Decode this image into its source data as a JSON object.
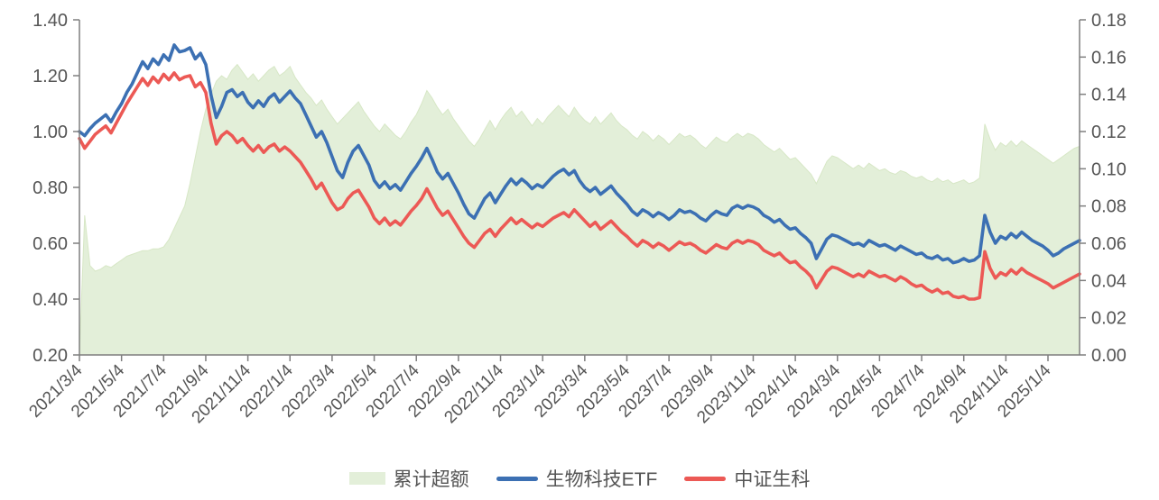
{
  "styles": {
    "axis_color": "#7F7F7F",
    "text_color": "#555555",
    "background": "#FFFFFF"
  },
  "chart_data": {
    "type": "line",
    "grid": false,
    "legend_position": "bottom",
    "x_axis": {
      "start_label": "2021/3/4",
      "tick_interval_months": 2,
      "extent_months": 47.5,
      "tick_labels": [
        "2021/3/4",
        "2021/5/4",
        "2021/7/4",
        "2021/9/4",
        "2021/11/4",
        "2022/1/4",
        "2022/3/4",
        "2022/5/4",
        "2022/7/4",
        "2022/9/4",
        "2022/11/4",
        "2023/1/4",
        "2023/3/4",
        "2023/5/4",
        "2023/7/4",
        "2023/9/4",
        "2023/11/4",
        "2024/1/4",
        "2024/3/4",
        "2024/5/4",
        "2024/7/4",
        "2024/9/4",
        "2024/11/4",
        "2025/1/4"
      ]
    },
    "left_axis": {
      "min": 0.2,
      "max": 1.4,
      "tick_labels": [
        "1.40",
        "1.20",
        "1.00",
        "0.80",
        "0.60",
        "0.40",
        "0.20"
      ]
    },
    "right_axis": {
      "min": 0.0,
      "max": 0.18,
      "tick_labels": [
        "0.18",
        "0.16",
        "0.14",
        "0.12",
        "0.10",
        "0.08",
        "0.06",
        "0.04",
        "0.02",
        "0.00"
      ]
    },
    "t_step_months": 0.25,
    "series": [
      {
        "name": "累计超额",
        "type": "area",
        "axis": "right",
        "color": "#E3EFD9",
        "edge_color": "#D7E7C6",
        "values": [
          0.0,
          0.075,
          0.048,
          0.045,
          0.046,
          0.048,
          0.047,
          0.049,
          0.051,
          0.053,
          0.054,
          0.055,
          0.056,
          0.056,
          0.057,
          0.057,
          0.058,
          0.062,
          0.068,
          0.074,
          0.08,
          0.092,
          0.106,
          0.12,
          0.132,
          0.14,
          0.147,
          0.15,
          0.148,
          0.153,
          0.156,
          0.152,
          0.148,
          0.151,
          0.147,
          0.15,
          0.153,
          0.155,
          0.15,
          0.152,
          0.155,
          0.149,
          0.145,
          0.141,
          0.138,
          0.134,
          0.137,
          0.132,
          0.128,
          0.124,
          0.127,
          0.13,
          0.133,
          0.136,
          0.131,
          0.127,
          0.123,
          0.12,
          0.124,
          0.121,
          0.118,
          0.116,
          0.12,
          0.125,
          0.129,
          0.135,
          0.142,
          0.138,
          0.133,
          0.129,
          0.132,
          0.127,
          0.123,
          0.119,
          0.115,
          0.112,
          0.116,
          0.121,
          0.126,
          0.121,
          0.126,
          0.13,
          0.133,
          0.128,
          0.131,
          0.127,
          0.123,
          0.127,
          0.124,
          0.128,
          0.131,
          0.134,
          0.131,
          0.128,
          0.133,
          0.129,
          0.126,
          0.124,
          0.128,
          0.124,
          0.127,
          0.13,
          0.126,
          0.123,
          0.121,
          0.118,
          0.116,
          0.12,
          0.118,
          0.115,
          0.118,
          0.116,
          0.113,
          0.116,
          0.119,
          0.117,
          0.118,
          0.116,
          0.113,
          0.111,
          0.114,
          0.117,
          0.115,
          0.114,
          0.117,
          0.119,
          0.117,
          0.119,
          0.118,
          0.116,
          0.113,
          0.111,
          0.109,
          0.111,
          0.108,
          0.105,
          0.106,
          0.103,
          0.1,
          0.097,
          0.092,
          0.098,
          0.104,
          0.107,
          0.106,
          0.104,
          0.102,
          0.1,
          0.102,
          0.1,
          0.103,
          0.101,
          0.099,
          0.1,
          0.098,
          0.097,
          0.099,
          0.098,
          0.096,
          0.095,
          0.096,
          0.094,
          0.093,
          0.095,
          0.093,
          0.094,
          0.092,
          0.093,
          0.094,
          0.092,
          0.093,
          0.095,
          0.124,
          0.116,
          0.11,
          0.114,
          0.112,
          0.115,
          0.112,
          0.115,
          0.113,
          0.111,
          0.109,
          0.107,
          0.105,
          0.103,
          0.105,
          0.107,
          0.109,
          0.111,
          0.112
        ]
      },
      {
        "name": "生物科技ETF",
        "type": "line",
        "axis": "left",
        "color": "#3C70B3",
        "values": [
          1.0,
          0.985,
          1.01,
          1.03,
          1.045,
          1.06,
          1.035,
          1.07,
          1.1,
          1.14,
          1.17,
          1.21,
          1.25,
          1.225,
          1.26,
          1.24,
          1.275,
          1.255,
          1.31,
          1.285,
          1.29,
          1.3,
          1.26,
          1.28,
          1.24,
          1.13,
          1.05,
          1.09,
          1.14,
          1.15,
          1.125,
          1.14,
          1.105,
          1.085,
          1.11,
          1.09,
          1.12,
          1.135,
          1.105,
          1.125,
          1.145,
          1.12,
          1.1,
          1.06,
          1.02,
          0.98,
          1.0,
          0.96,
          0.91,
          0.86,
          0.835,
          0.89,
          0.93,
          0.95,
          0.915,
          0.88,
          0.825,
          0.8,
          0.82,
          0.795,
          0.81,
          0.79,
          0.82,
          0.85,
          0.875,
          0.905,
          0.94,
          0.9,
          0.855,
          0.83,
          0.85,
          0.815,
          0.78,
          0.74,
          0.705,
          0.69,
          0.725,
          0.76,
          0.78,
          0.745,
          0.775,
          0.805,
          0.83,
          0.81,
          0.83,
          0.815,
          0.795,
          0.81,
          0.8,
          0.82,
          0.84,
          0.855,
          0.865,
          0.845,
          0.86,
          0.825,
          0.8,
          0.785,
          0.8,
          0.775,
          0.79,
          0.805,
          0.78,
          0.76,
          0.74,
          0.715,
          0.7,
          0.72,
          0.71,
          0.695,
          0.71,
          0.7,
          0.685,
          0.7,
          0.72,
          0.71,
          0.715,
          0.705,
          0.69,
          0.68,
          0.7,
          0.715,
          0.705,
          0.7,
          0.725,
          0.735,
          0.725,
          0.735,
          0.73,
          0.72,
          0.7,
          0.69,
          0.675,
          0.685,
          0.665,
          0.65,
          0.655,
          0.635,
          0.62,
          0.6,
          0.545,
          0.58,
          0.615,
          0.63,
          0.625,
          0.615,
          0.605,
          0.595,
          0.6,
          0.59,
          0.61,
          0.6,
          0.59,
          0.595,
          0.585,
          0.575,
          0.59,
          0.58,
          0.57,
          0.56,
          0.565,
          0.55,
          0.545,
          0.555,
          0.54,
          0.545,
          0.53,
          0.535,
          0.545,
          0.535,
          0.54,
          0.555,
          0.7,
          0.64,
          0.6,
          0.625,
          0.615,
          0.635,
          0.62,
          0.64,
          0.625,
          0.61,
          0.6,
          0.59,
          0.575,
          0.555,
          0.565,
          0.58,
          0.59,
          0.6,
          0.61
        ]
      },
      {
        "name": "中证生科",
        "type": "line",
        "axis": "left",
        "color": "#EC5955",
        "values": [
          0.975,
          0.94,
          0.965,
          0.99,
          1.005,
          1.02,
          0.995,
          1.03,
          1.065,
          1.1,
          1.13,
          1.16,
          1.19,
          1.165,
          1.195,
          1.175,
          1.205,
          1.185,
          1.21,
          1.185,
          1.195,
          1.2,
          1.16,
          1.175,
          1.14,
          1.03,
          0.955,
          0.985,
          1.0,
          0.985,
          0.96,
          0.975,
          0.95,
          0.93,
          0.95,
          0.925,
          0.945,
          0.955,
          0.93,
          0.945,
          0.93,
          0.91,
          0.89,
          0.86,
          0.83,
          0.795,
          0.815,
          0.78,
          0.745,
          0.72,
          0.73,
          0.76,
          0.78,
          0.79,
          0.76,
          0.73,
          0.69,
          0.67,
          0.69,
          0.665,
          0.68,
          0.665,
          0.69,
          0.715,
          0.735,
          0.76,
          0.795,
          0.76,
          0.725,
          0.7,
          0.715,
          0.685,
          0.655,
          0.625,
          0.6,
          0.585,
          0.61,
          0.635,
          0.65,
          0.625,
          0.65,
          0.67,
          0.69,
          0.67,
          0.685,
          0.67,
          0.655,
          0.67,
          0.66,
          0.675,
          0.69,
          0.7,
          0.71,
          0.695,
          0.72,
          0.7,
          0.68,
          0.66,
          0.675,
          0.65,
          0.665,
          0.68,
          0.66,
          0.64,
          0.625,
          0.605,
          0.59,
          0.61,
          0.6,
          0.585,
          0.6,
          0.59,
          0.575,
          0.59,
          0.605,
          0.595,
          0.6,
          0.59,
          0.575,
          0.565,
          0.58,
          0.595,
          0.585,
          0.58,
          0.6,
          0.61,
          0.6,
          0.61,
          0.605,
          0.595,
          0.575,
          0.565,
          0.555,
          0.565,
          0.545,
          0.53,
          0.535,
          0.515,
          0.5,
          0.48,
          0.44,
          0.47,
          0.5,
          0.515,
          0.51,
          0.5,
          0.49,
          0.48,
          0.49,
          0.48,
          0.5,
          0.49,
          0.48,
          0.485,
          0.475,
          0.465,
          0.48,
          0.47,
          0.455,
          0.445,
          0.45,
          0.435,
          0.425,
          0.435,
          0.42,
          0.425,
          0.41,
          0.405,
          0.41,
          0.4,
          0.4,
          0.405,
          0.57,
          0.51,
          0.475,
          0.495,
          0.485,
          0.505,
          0.49,
          0.51,
          0.495,
          0.485,
          0.475,
          0.465,
          0.455,
          0.44,
          0.45,
          0.46,
          0.47,
          0.48,
          0.49
        ]
      }
    ]
  }
}
